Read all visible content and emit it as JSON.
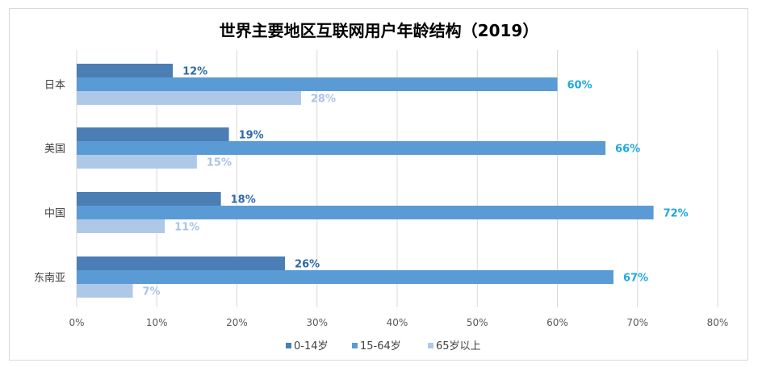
{
  "chart_data": {
    "type": "bar",
    "orientation": "horizontal",
    "title": "世界主要地区互联网用户年龄结构（2019）",
    "categories": [
      "日本",
      "美国",
      "中国",
      "东南亚"
    ],
    "series": [
      {
        "name": "0-14岁",
        "values": [
          12,
          19,
          18,
          26
        ],
        "labels": [
          "12%",
          "19%",
          "18%",
          "26%"
        ],
        "color": "#4a7eb5",
        "label_color": "#2e6aa8"
      },
      {
        "name": "15-64岁",
        "values": [
          60,
          66,
          72,
          67
        ],
        "labels": [
          "60%",
          "66%",
          "72%",
          "67%"
        ],
        "color": "#5b9bd5",
        "label_color": "#1fa8e0"
      },
      {
        "name": "65岁以上",
        "values": [
          28,
          15,
          11,
          7
        ],
        "labels": [
          "28%",
          "15%",
          "11%",
          "7%"
        ],
        "color": "#aec8e8",
        "label_color": "#a9c4e6"
      }
    ],
    "xlim": [
      0,
      80
    ],
    "ticks": [
      0,
      10,
      20,
      30,
      40,
      50,
      60,
      70,
      80
    ],
    "tick_labels": [
      "0%",
      "10%",
      "20%",
      "30%",
      "40%",
      "50%",
      "60%",
      "70%",
      "80%"
    ],
    "grid": true,
    "legend": "bottom"
  }
}
